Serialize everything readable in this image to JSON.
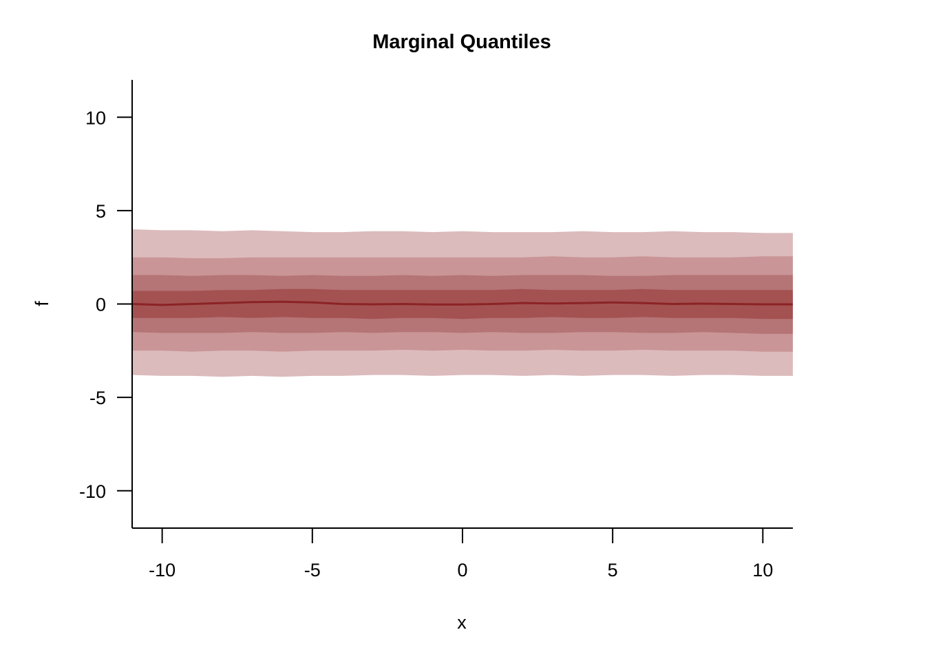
{
  "chart_data": {
    "type": "area",
    "title": "Marginal Quantiles",
    "xlabel": "x",
    "ylabel": "f",
    "xlim": [
      -11,
      11
    ],
    "ylim": [
      -12,
      12
    ],
    "x_ticks": [
      -10,
      -5,
      0,
      5,
      10
    ],
    "x_tick_labels": [
      "-10",
      "-5",
      "0",
      "5",
      "10"
    ],
    "y_ticks": [
      -10,
      -5,
      0,
      5,
      10
    ],
    "y_tick_labels": [
      "-10",
      "-5",
      "0",
      "5",
      "10"
    ],
    "grid": false,
    "x": [
      -11,
      -10,
      -9,
      -8,
      -7,
      -6,
      -5,
      -4,
      -3,
      -2,
      -1,
      0,
      1,
      2,
      3,
      4,
      5,
      6,
      7,
      8,
      9,
      10,
      11
    ],
    "bands": [
      {
        "color": "#dcbbbd",
        "lower": [
          -3.8,
          -3.85,
          -3.85,
          -3.9,
          -3.85,
          -3.9,
          -3.85,
          -3.85,
          -3.8,
          -3.8,
          -3.85,
          -3.8,
          -3.8,
          -3.85,
          -3.8,
          -3.85,
          -3.8,
          -3.8,
          -3.85,
          -3.8,
          -3.8,
          -3.85,
          -3.85
        ],
        "upper": [
          4.0,
          3.95,
          3.95,
          3.9,
          3.95,
          3.9,
          3.85,
          3.85,
          3.9,
          3.9,
          3.85,
          3.9,
          3.85,
          3.85,
          3.85,
          3.9,
          3.85,
          3.85,
          3.9,
          3.85,
          3.85,
          3.8,
          3.8
        ]
      },
      {
        "color": "#c99596",
        "lower": [
          -2.5,
          -2.5,
          -2.55,
          -2.5,
          -2.5,
          -2.55,
          -2.5,
          -2.5,
          -2.5,
          -2.45,
          -2.5,
          -2.45,
          -2.5,
          -2.5,
          -2.45,
          -2.5,
          -2.5,
          -2.45,
          -2.5,
          -2.5,
          -2.5,
          -2.55,
          -2.55
        ],
        "upper": [
          2.5,
          2.5,
          2.45,
          2.45,
          2.5,
          2.5,
          2.5,
          2.5,
          2.5,
          2.5,
          2.5,
          2.5,
          2.5,
          2.5,
          2.55,
          2.5,
          2.5,
          2.55,
          2.5,
          2.5,
          2.5,
          2.55,
          2.55
        ]
      },
      {
        "color": "#b57475",
        "lower": [
          -1.5,
          -1.55,
          -1.55,
          -1.55,
          -1.5,
          -1.55,
          -1.55,
          -1.5,
          -1.55,
          -1.5,
          -1.5,
          -1.55,
          -1.5,
          -1.55,
          -1.55,
          -1.5,
          -1.5,
          -1.55,
          -1.55,
          -1.5,
          -1.55,
          -1.6,
          -1.6
        ],
        "upper": [
          1.55,
          1.55,
          1.5,
          1.55,
          1.55,
          1.5,
          1.55,
          1.5,
          1.5,
          1.55,
          1.5,
          1.55,
          1.5,
          1.55,
          1.55,
          1.55,
          1.5,
          1.5,
          1.55,
          1.55,
          1.55,
          1.55,
          1.55
        ]
      },
      {
        "color": "#a45152",
        "lower": [
          -0.75,
          -0.75,
          -0.75,
          -0.7,
          -0.75,
          -0.7,
          -0.75,
          -0.75,
          -0.8,
          -0.75,
          -0.75,
          -0.8,
          -0.75,
          -0.75,
          -0.7,
          -0.75,
          -0.75,
          -0.7,
          -0.75,
          -0.75,
          -0.75,
          -0.8,
          -0.8
        ],
        "upper": [
          0.7,
          0.7,
          0.7,
          0.75,
          0.75,
          0.8,
          0.8,
          0.75,
          0.75,
          0.75,
          0.75,
          0.75,
          0.75,
          0.8,
          0.75,
          0.75,
          0.75,
          0.8,
          0.75,
          0.75,
          0.75,
          0.75,
          0.75
        ]
      }
    ],
    "median": {
      "color": "#8b2324",
      "values": [
        0.0,
        -0.05,
        0.0,
        0.05,
        0.1,
        0.12,
        0.08,
        0.0,
        -0.02,
        0.0,
        -0.03,
        -0.03,
        0.0,
        0.05,
        0.03,
        0.05,
        0.08,
        0.05,
        0.0,
        0.02,
        0.0,
        -0.02,
        -0.02
      ]
    }
  }
}
